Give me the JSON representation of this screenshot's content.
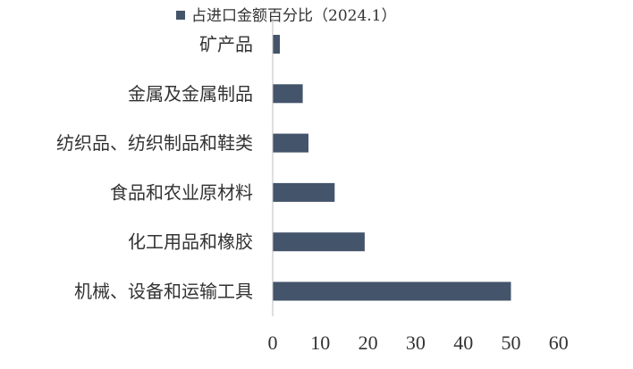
{
  "chart_data": {
    "type": "bar",
    "orientation": "horizontal",
    "categories": [
      "矿产品",
      "金属及金属制品",
      "纺织品、纺织制品和鞋类",
      "食品和农业原材料",
      "化工用品和橡胶",
      "机械、设备和运输工具"
    ],
    "series": [
      {
        "name": "占进口金额百分比（2024.1）",
        "values": [
          1.5,
          6.3,
          7.5,
          13.0,
          19.3,
          50.0
        ]
      }
    ],
    "xticks": [
      0,
      10,
      20,
      30,
      40,
      50,
      60
    ],
    "xlim": [
      0,
      60
    ],
    "grid": false,
    "legend_position": "top",
    "bar_color": "#44546a"
  }
}
